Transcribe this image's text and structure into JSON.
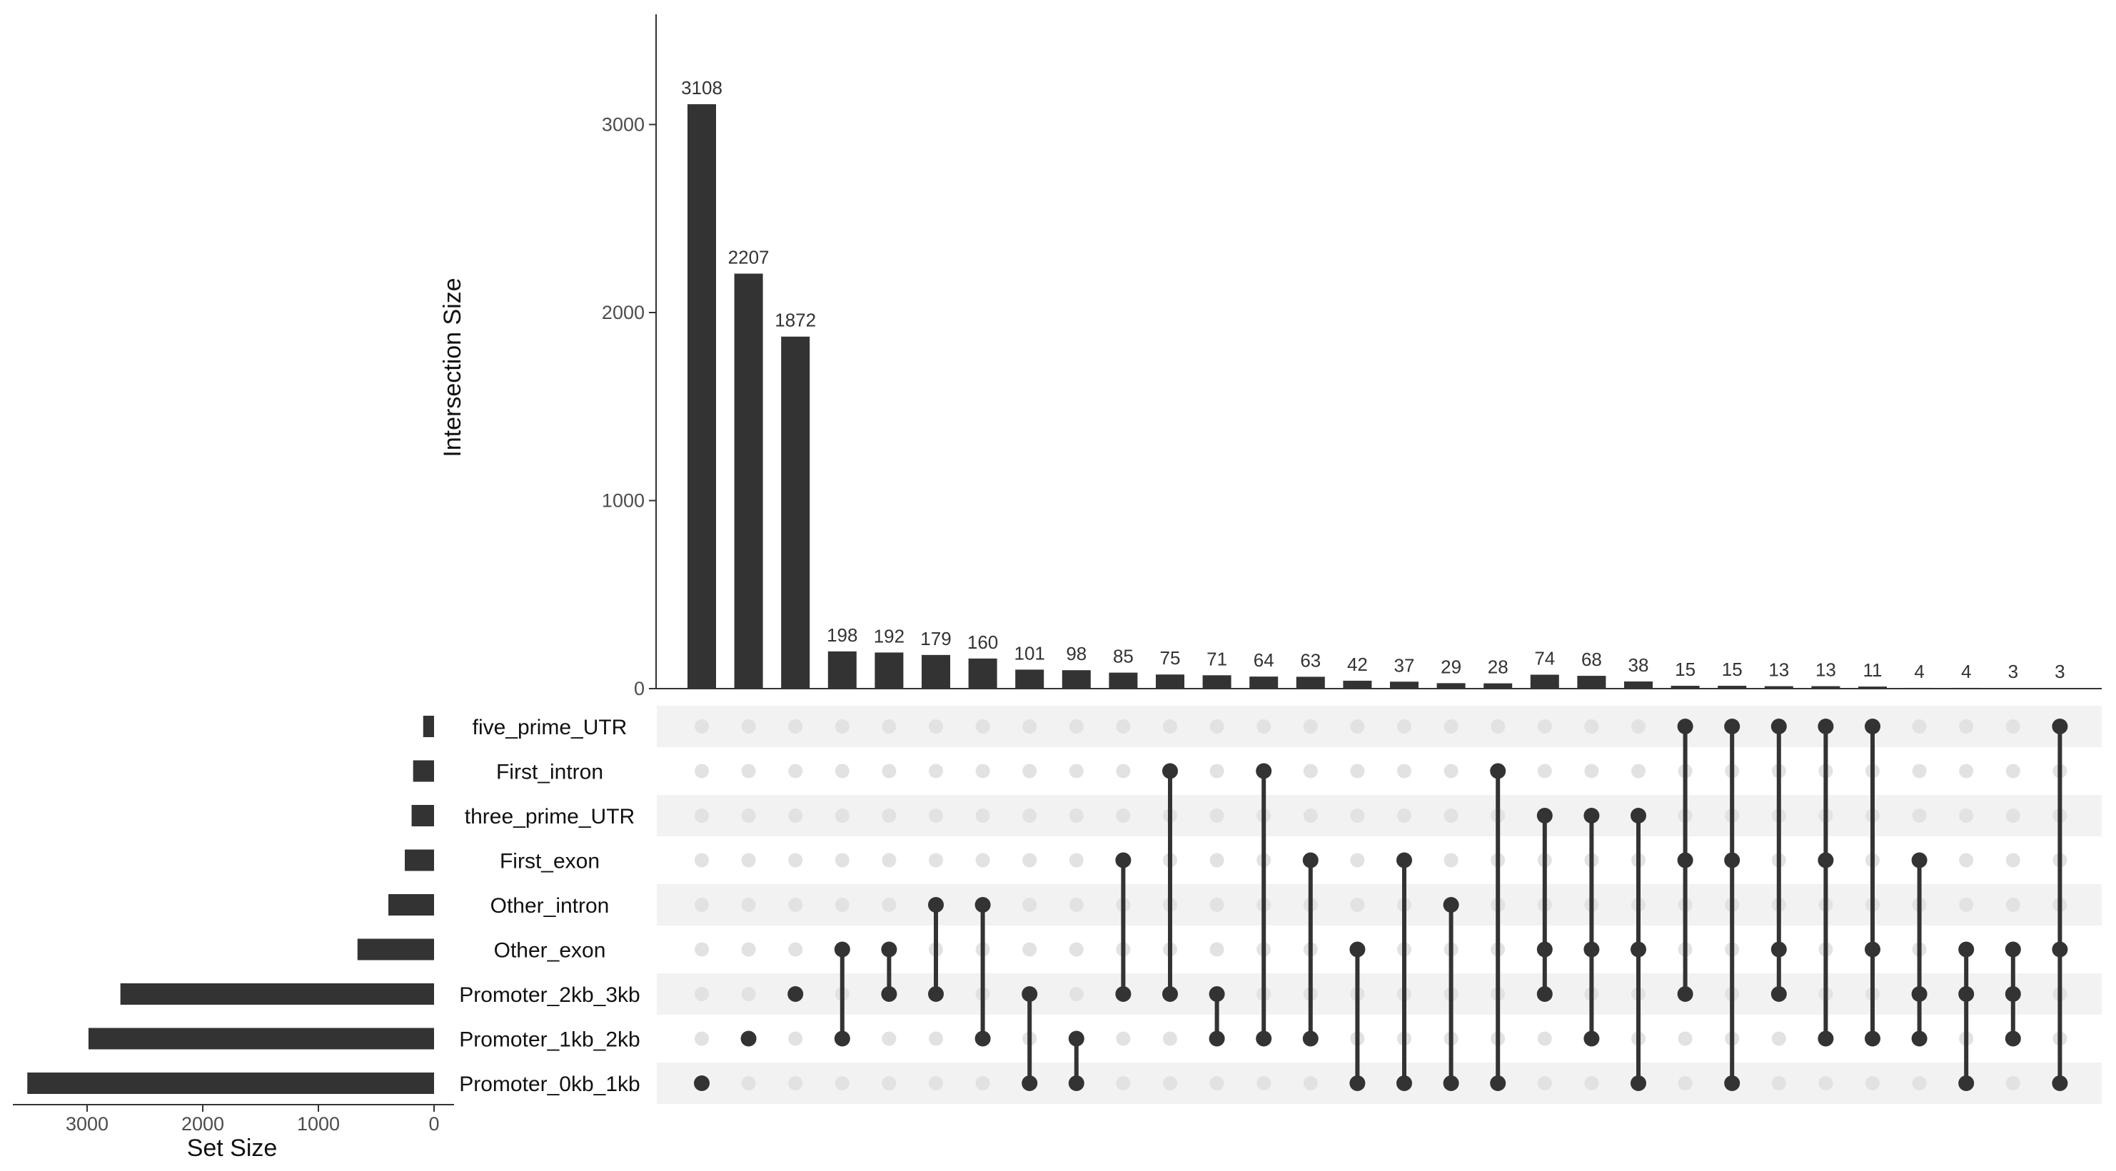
{
  "chart_data": {
    "type": "upset",
    "intersection_axis": {
      "label": "Intersection Size",
      "ticks": [
        0,
        1000,
        2000,
        3000
      ],
      "ylim": [
        0,
        3600
      ]
    },
    "set_size_axis": {
      "label": "Set Size",
      "ticks": [
        3000,
        2000,
        1000,
        0
      ],
      "xlim": [
        0,
        3600
      ],
      "reversed": true
    },
    "sets": [
      {
        "name": "five_prime_UTR",
        "size": 94
      },
      {
        "name": "First_intron",
        "size": 181
      },
      {
        "name": "three_prime_UTR",
        "size": 194
      },
      {
        "name": "First_exon",
        "size": 253
      },
      {
        "name": "Other_intron",
        "size": 395
      },
      {
        "name": "Other_exon",
        "size": 662
      },
      {
        "name": "Promoter_2kb_3kb",
        "size": 2712
      },
      {
        "name": "Promoter_1kb_2kb",
        "size": 2988
      },
      {
        "name": "Promoter_0kb_1kb",
        "size": 3517
      }
    ],
    "intersections": [
      {
        "size": 3108,
        "sets": [
          "Promoter_0kb_1kb"
        ]
      },
      {
        "size": 2207,
        "sets": [
          "Promoter_1kb_2kb"
        ]
      },
      {
        "size": 1872,
        "sets": [
          "Promoter_2kb_3kb"
        ]
      },
      {
        "size": 198,
        "sets": [
          "Other_exon",
          "Promoter_1kb_2kb"
        ]
      },
      {
        "size": 192,
        "sets": [
          "Other_exon",
          "Promoter_2kb_3kb"
        ]
      },
      {
        "size": 179,
        "sets": [
          "Other_intron",
          "Promoter_2kb_3kb"
        ]
      },
      {
        "size": 160,
        "sets": [
          "Other_intron",
          "Promoter_1kb_2kb"
        ]
      },
      {
        "size": 101,
        "sets": [
          "Promoter_2kb_3kb",
          "Promoter_0kb_1kb"
        ]
      },
      {
        "size": 98,
        "sets": [
          "Promoter_1kb_2kb",
          "Promoter_0kb_1kb"
        ]
      },
      {
        "size": 85,
        "sets": [
          "First_exon",
          "Promoter_2kb_3kb"
        ]
      },
      {
        "size": 75,
        "sets": [
          "First_intron",
          "Promoter_2kb_3kb"
        ]
      },
      {
        "size": 71,
        "sets": [
          "Promoter_2kb_3kb",
          "Promoter_1kb_2kb"
        ]
      },
      {
        "size": 64,
        "sets": [
          "First_intron",
          "Promoter_1kb_2kb"
        ]
      },
      {
        "size": 63,
        "sets": [
          "First_exon",
          "Promoter_1kb_2kb"
        ]
      },
      {
        "size": 42,
        "sets": [
          "Other_exon",
          "Promoter_0kb_1kb"
        ]
      },
      {
        "size": 37,
        "sets": [
          "First_exon",
          "Promoter_0kb_1kb"
        ]
      },
      {
        "size": 29,
        "sets": [
          "Other_intron",
          "Promoter_0kb_1kb"
        ]
      },
      {
        "size": 28,
        "sets": [
          "First_intron",
          "Promoter_0kb_1kb"
        ]
      },
      {
        "size": 74,
        "sets": [
          "three_prime_UTR",
          "Other_exon",
          "Promoter_2kb_3kb"
        ]
      },
      {
        "size": 68,
        "sets": [
          "three_prime_UTR",
          "Other_exon",
          "Promoter_1kb_2kb"
        ]
      },
      {
        "size": 38,
        "sets": [
          "three_prime_UTR",
          "Other_exon",
          "Promoter_0kb_1kb"
        ]
      },
      {
        "size": 15,
        "sets": [
          "five_prime_UTR",
          "First_exon",
          "Promoter_2kb_3kb"
        ]
      },
      {
        "size": 15,
        "sets": [
          "five_prime_UTR",
          "First_exon",
          "Promoter_0kb_1kb"
        ]
      },
      {
        "size": 13,
        "sets": [
          "five_prime_UTR",
          "Other_exon",
          "Promoter_2kb_3kb"
        ]
      },
      {
        "size": 13,
        "sets": [
          "five_prime_UTR",
          "First_exon",
          "Promoter_1kb_2kb"
        ]
      },
      {
        "size": 11,
        "sets": [
          "five_prime_UTR",
          "Other_exon",
          "Promoter_1kb_2kb"
        ]
      },
      {
        "size": 4,
        "sets": [
          "First_exon",
          "Promoter_2kb_3kb",
          "Promoter_1kb_2kb"
        ]
      },
      {
        "size": 4,
        "sets": [
          "Other_exon",
          "Promoter_2kb_3kb",
          "Promoter_0kb_1kb"
        ]
      },
      {
        "size": 3,
        "sets": [
          "Other_exon",
          "Promoter_2kb_3kb",
          "Promoter_1kb_2kb"
        ]
      },
      {
        "size": 3,
        "sets": [
          "five_prime_UTR",
          "Other_exon",
          "Promoter_0kb_1kb"
        ]
      }
    ],
    "colors": {
      "bar": "#333333",
      "dot_active": "#333333",
      "dot_inactive": "#e2e2e2",
      "stripe": "#f2f2f2",
      "axis": "#333333",
      "tick_text": "#4d4d4d"
    },
    "grid": false
  }
}
